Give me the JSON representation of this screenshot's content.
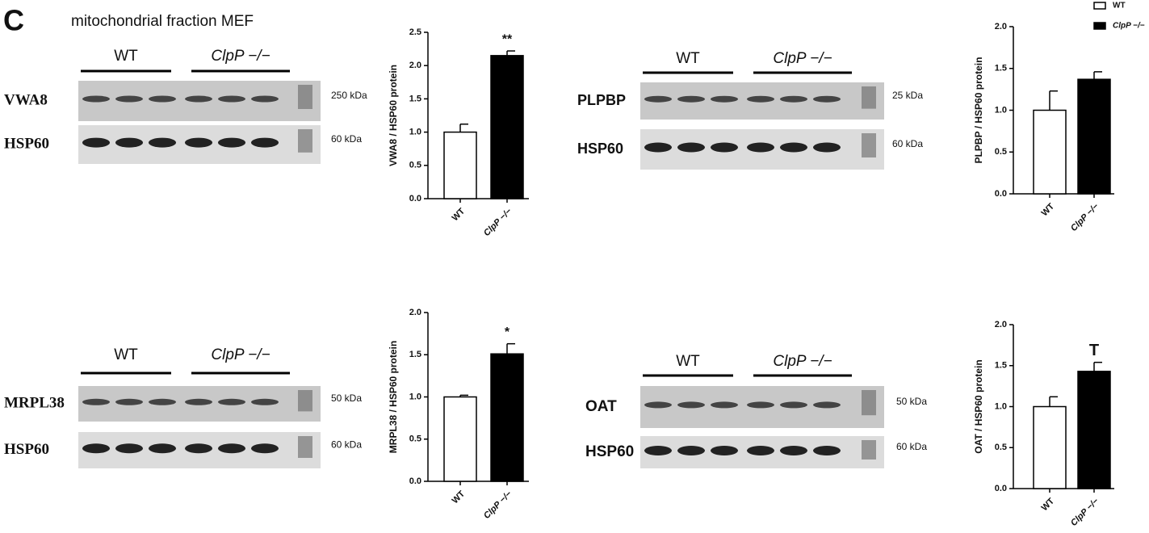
{
  "panel": "C",
  "figure_title": "mitochondrial fraction MEF",
  "legend": [
    {
      "label": "WT",
      "color": "#ffffff"
    },
    {
      "label": "ClpP −/−",
      "color": "#000000"
    }
  ],
  "blots": [
    {
      "groups": [
        "WT",
        "ClpP −/−"
      ],
      "rows": [
        {
          "protein": "VWA8",
          "marker": "250 kDa"
        },
        {
          "protein": "HSP60",
          "marker": "60 kDa"
        }
      ]
    },
    {
      "groups": [
        "WT",
        "ClpP −/−"
      ],
      "rows": [
        {
          "protein": "PLPBP",
          "marker": "25 kDa"
        },
        {
          "protein": "HSP60",
          "marker": "60 kDa"
        }
      ]
    },
    {
      "groups": [
        "WT",
        "ClpP −/−"
      ],
      "rows": [
        {
          "protein": "MRPL38",
          "marker": "50 kDa"
        },
        {
          "protein": "HSP60",
          "marker": "60 kDa"
        }
      ]
    },
    {
      "groups": [
        "WT",
        "ClpP −/−"
      ],
      "rows": [
        {
          "protein": "OAT",
          "marker": "50 kDa"
        },
        {
          "protein": "HSP60",
          "marker": "60 kDa"
        }
      ]
    }
  ],
  "chart_data": [
    {
      "type": "bar",
      "y_label": "VWA8 / HSP60 protein",
      "categories": [
        "WT",
        "ClpP −/−"
      ],
      "values": [
        1.0,
        2.15
      ],
      "errors": [
        0.12,
        0.07
      ],
      "colors": [
        "#ffffff",
        "#000000"
      ],
      "annotation": "**",
      "ylim": [
        0,
        2.5
      ],
      "yticks": [
        {
          "value": 0,
          "label": "0.0"
        },
        {
          "value": 0.5,
          "label": "0.5"
        },
        {
          "value": 1,
          "label": "1.0"
        },
        {
          "value": 1.5,
          "label": "1.5"
        },
        {
          "value": 2,
          "label": "2.0"
        },
        {
          "value": 2.5,
          "label": "2.5"
        }
      ]
    },
    {
      "type": "bar",
      "y_label": "PLPBP / HSP60 protein",
      "categories": [
        "WT",
        "ClpP −/−"
      ],
      "values": [
        1.0,
        1.37
      ],
      "errors": [
        0.23,
        0.09
      ],
      "colors": [
        "#ffffff",
        "#000000"
      ],
      "ylim": [
        0,
        2.0
      ],
      "yticks": [
        {
          "value": 0,
          "label": "0.0"
        },
        {
          "value": 0.5,
          "label": "0.5"
        },
        {
          "value": 1,
          "label": "1.0"
        },
        {
          "value": 1.5,
          "label": "1.5"
        },
        {
          "value": 2,
          "label": "2.0"
        }
      ]
    },
    {
      "type": "bar",
      "y_label": "MRPL38 / HSP60 protein",
      "categories": [
        "WT",
        "ClpP −/−"
      ],
      "values": [
        1.0,
        1.51
      ],
      "errors": [
        0.02,
        0.12
      ],
      "colors": [
        "#ffffff",
        "#000000"
      ],
      "annotation": "*",
      "ylim": [
        0,
        2.0
      ],
      "yticks": [
        {
          "value": 0,
          "label": "0.0"
        },
        {
          "value": 0.5,
          "label": "0.5"
        },
        {
          "value": 1,
          "label": "1.0"
        },
        {
          "value": 1.5,
          "label": "1.5"
        },
        {
          "value": 2,
          "label": "2.0"
        }
      ]
    },
    {
      "type": "bar",
      "y_label": "OAT / HSP60 protein",
      "categories": [
        "WT",
        "ClpP −/−"
      ],
      "values": [
        1.0,
        1.43
      ],
      "errors": [
        0.12,
        0.11
      ],
      "colors": [
        "#ffffff",
        "#000000"
      ],
      "annotation": "T",
      "ylim": [
        0,
        2.0
      ],
      "yticks": [
        {
          "value": 0,
          "label": "0.0"
        },
        {
          "value": 0.5,
          "label": "0.5"
        },
        {
          "value": 1,
          "label": "1.0"
        },
        {
          "value": 1.5,
          "label": "1.5"
        },
        {
          "value": 2,
          "label": "2.0"
        }
      ]
    }
  ]
}
